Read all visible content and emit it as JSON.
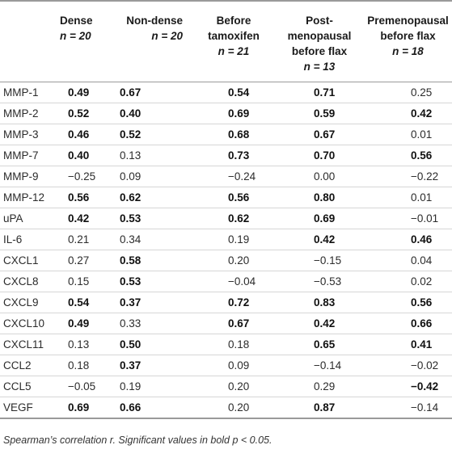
{
  "table": {
    "headers": [
      {
        "line1": "",
        "line2": "",
        "line3": ""
      },
      {
        "line1": "Dense",
        "n": "n = 20"
      },
      {
        "line1": "Non-dense",
        "n": "n = 20"
      },
      {
        "line1": "Before",
        "line2": "tamoxifen",
        "n": "n = 21"
      },
      {
        "line1": "Post-",
        "line2": "menopausal",
        "line3": "before flax",
        "n": "n = 13"
      },
      {
        "line1": "Premenopausal",
        "line2": "before flax",
        "n": "n = 18"
      }
    ],
    "rows": [
      {
        "label": "MMP-1",
        "cells": [
          {
            "v": "0.49",
            "b": true
          },
          {
            "v": "0.67",
            "b": true
          },
          {
            "v": "0.54",
            "b": true
          },
          {
            "v": "0.71",
            "b": true
          },
          {
            "v": "0.25",
            "b": false
          }
        ]
      },
      {
        "label": "MMP-2",
        "cells": [
          {
            "v": "0.52",
            "b": true
          },
          {
            "v": "0.40",
            "b": true
          },
          {
            "v": "0.69",
            "b": true
          },
          {
            "v": "0.59",
            "b": true
          },
          {
            "v": "0.42",
            "b": true
          }
        ]
      },
      {
        "label": "MMP-3",
        "cells": [
          {
            "v": "0.46",
            "b": true
          },
          {
            "v": "0.52",
            "b": true
          },
          {
            "v": "0.68",
            "b": true
          },
          {
            "v": "0.67",
            "b": true
          },
          {
            "v": "0.01",
            "b": false
          }
        ]
      },
      {
        "label": "MMP-7",
        "cells": [
          {
            "v": "0.40",
            "b": true
          },
          {
            "v": "0.13",
            "b": false
          },
          {
            "v": "0.73",
            "b": true
          },
          {
            "v": "0.70",
            "b": true
          },
          {
            "v": "0.56",
            "b": true
          }
        ]
      },
      {
        "label": "MMP-9",
        "cells": [
          {
            "v": "−0.25",
            "b": false
          },
          {
            "v": "0.09",
            "b": false
          },
          {
            "v": "−0.24",
            "b": false
          },
          {
            "v": "0.00",
            "b": false
          },
          {
            "v": "−0.22",
            "b": false
          }
        ]
      },
      {
        "label": "MMP-12",
        "cells": [
          {
            "v": "0.56",
            "b": true
          },
          {
            "v": "0.62",
            "b": true
          },
          {
            "v": "0.56",
            "b": true
          },
          {
            "v": "0.80",
            "b": true
          },
          {
            "v": "0.01",
            "b": false
          }
        ]
      },
      {
        "label": "uPA",
        "cells": [
          {
            "v": "0.42",
            "b": true
          },
          {
            "v": "0.53",
            "b": true
          },
          {
            "v": "0.62",
            "b": true
          },
          {
            "v": "0.69",
            "b": true
          },
          {
            "v": "−0.01",
            "b": false
          }
        ]
      },
      {
        "label": "IL-6",
        "cells": [
          {
            "v": "0.21",
            "b": false
          },
          {
            "v": "0.34",
            "b": false
          },
          {
            "v": "0.19",
            "b": false
          },
          {
            "v": "0.42",
            "b": true
          },
          {
            "v": "0.46",
            "b": true
          }
        ]
      },
      {
        "label": "CXCL1",
        "cells": [
          {
            "v": "0.27",
            "b": false
          },
          {
            "v": "0.58",
            "b": true
          },
          {
            "v": "0.20",
            "b": false
          },
          {
            "v": "−0.15",
            "b": false
          },
          {
            "v": "0.04",
            "b": false
          }
        ]
      },
      {
        "label": "CXCL8",
        "cells": [
          {
            "v": "0.15",
            "b": false
          },
          {
            "v": "0.53",
            "b": true
          },
          {
            "v": "−0.04",
            "b": false
          },
          {
            "v": "−0.53",
            "b": false
          },
          {
            "v": "0.02",
            "b": false
          }
        ]
      },
      {
        "label": "CXCL9",
        "cells": [
          {
            "v": "0.54",
            "b": true
          },
          {
            "v": "0.37",
            "b": true
          },
          {
            "v": "0.72",
            "b": true
          },
          {
            "v": "0.83",
            "b": true
          },
          {
            "v": "0.56",
            "b": true
          }
        ]
      },
      {
        "label": "CXCL10",
        "cells": [
          {
            "v": "0.49",
            "b": true
          },
          {
            "v": "0.33",
            "b": false
          },
          {
            "v": "0.67",
            "b": true
          },
          {
            "v": "0.42",
            "b": true
          },
          {
            "v": "0.66",
            "b": true
          }
        ]
      },
      {
        "label": "CXCL11",
        "cells": [
          {
            "v": "0.13",
            "b": false
          },
          {
            "v": "0.50",
            "b": true
          },
          {
            "v": "0.18",
            "b": false
          },
          {
            "v": "0.65",
            "b": true
          },
          {
            "v": "0.41",
            "b": true
          }
        ]
      },
      {
        "label": "CCL2",
        "cells": [
          {
            "v": "0.18",
            "b": false
          },
          {
            "v": "0.37",
            "b": true
          },
          {
            "v": "0.09",
            "b": false
          },
          {
            "v": "−0.14",
            "b": false
          },
          {
            "v": "−0.02",
            "b": false
          }
        ]
      },
      {
        "label": "CCL5",
        "cells": [
          {
            "v": "−0.05",
            "b": false
          },
          {
            "v": "0.19",
            "b": false
          },
          {
            "v": "0.20",
            "b": false
          },
          {
            "v": "0.29",
            "b": false
          },
          {
            "v": "−0.42",
            "b": true
          }
        ]
      },
      {
        "label": "VEGF",
        "cells": [
          {
            "v": "0.69",
            "b": true
          },
          {
            "v": "0.66",
            "b": true
          },
          {
            "v": "0.20",
            "b": false
          },
          {
            "v": "0.87",
            "b": true
          },
          {
            "v": "−0.14",
            "b": false
          }
        ]
      }
    ]
  },
  "footnote": "Spearman’s correlation r. Significant values in bold p < 0.05."
}
